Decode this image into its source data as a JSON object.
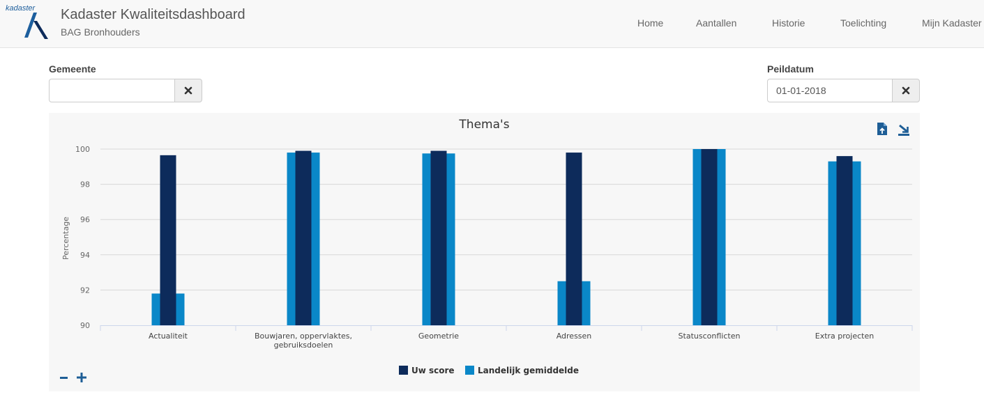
{
  "header": {
    "logo_text": "kadaster",
    "title": "Kadaster Kwaliteitsdashboard",
    "subtitle": "BAG Bronhouders",
    "nav": [
      {
        "label": "Home"
      },
      {
        "label": "Aantallen"
      },
      {
        "label": "Historie"
      },
      {
        "label": "Toelichting"
      },
      {
        "label": "Mijn Kadaster"
      }
    ]
  },
  "filters": {
    "gemeente": {
      "label": "Gemeente",
      "value": "",
      "placeholder": ""
    },
    "peildatum": {
      "label": "Peildatum",
      "value": "01-01-2018"
    }
  },
  "colors": {
    "uw_score": "#0d2b5b",
    "landelijk": "#0a87c8",
    "accent": "#1e5e96"
  },
  "icons": {
    "export": "export-pdf-icon",
    "download": "download-icon",
    "clear": "times-icon",
    "zoom_out": "minus-icon",
    "zoom_in": "plus-icon"
  },
  "chart_data": {
    "type": "bar",
    "title": "Thema's",
    "ylabel": "Percentage",
    "xlabel": "",
    "ylim": [
      90,
      100
    ],
    "yticks": [
      90,
      92,
      94,
      96,
      98,
      100
    ],
    "categories": [
      "Actualiteit",
      "Bouwjaren, oppervlaktes, gebruiksdoelen",
      "Geometrie",
      "Adressen",
      "Statusconflicten",
      "Extra projecten"
    ],
    "category_lines": [
      [
        "Actualiteit"
      ],
      [
        "Bouwjaren, oppervlaktes,",
        "gebruiksdoelen"
      ],
      [
        "Geometrie"
      ],
      [
        "Adressen"
      ],
      [
        "Statusconflicten"
      ],
      [
        "Extra projecten"
      ]
    ],
    "series": [
      {
        "name": "Landelijk gemiddelde",
        "values": [
          91.8,
          99.8,
          99.75,
          92.5,
          100,
          99.3
        ]
      },
      {
        "name": "Uw score",
        "values": [
          99.65,
          99.9,
          99.9,
          99.8,
          100,
          99.6
        ]
      }
    ],
    "legend": [
      "Uw score",
      "Landelijk gemiddelde"
    ],
    "legend_position": "bottom-center",
    "grid": true
  }
}
